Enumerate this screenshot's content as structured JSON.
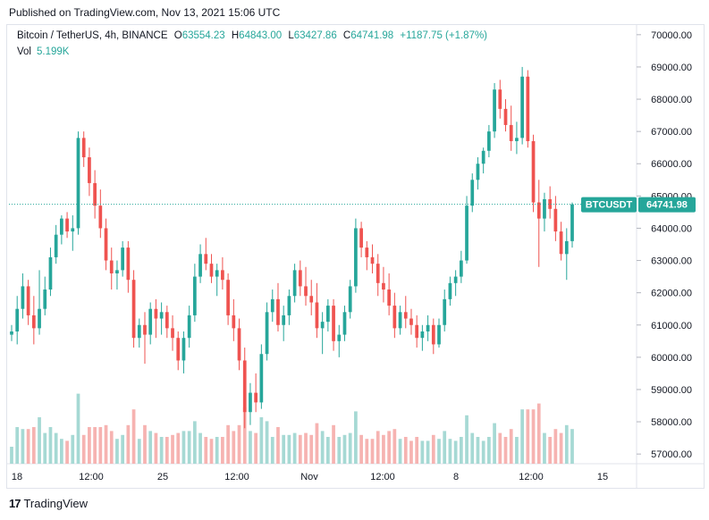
{
  "published": "Published on TradingView.com, Nov 13, 2021 15:06 UTC",
  "legend": {
    "symbol": "Bitcoin / TetherUS, 4h, BINANCE",
    "open_label": "O",
    "open": "63554.23",
    "high_label": "H",
    "high": "64843.00",
    "low_label": "L",
    "low": "63427.86",
    "close_label": "C",
    "close": "64741.98",
    "change": "+1187.75 (+1.87%)"
  },
  "volume": {
    "label": "Vol",
    "value": "5.199K"
  },
  "footer": {
    "logo": "17",
    "brand": "TradingView"
  },
  "colors": {
    "up": "#26a69a",
    "down": "#ef5350",
    "vol_up": "#a6d9d4",
    "vol_down": "#f6b3b1",
    "badge": "#26a69a"
  },
  "chart_data": {
    "type": "candlestick",
    "title": "Bitcoin / TetherUS, 4h, BINANCE",
    "ylim": [
      56700,
      70300
    ],
    "y_ticks": [
      "70000.00",
      "69000.00",
      "68000.00",
      "67000.00",
      "66000.00",
      "65000.00",
      "64000.00",
      "63000.00",
      "62000.00",
      "61000.00",
      "60000.00",
      "59000.00",
      "58000.00",
      "57000.00"
    ],
    "x_ticks": [
      "18",
      "12:00",
      "25",
      "12:00",
      "Nov",
      "12:00",
      "8",
      "12:00",
      "15"
    ],
    "last_price": 64741.98,
    "last_price_label": "64741.98",
    "symbol_badge": "BTCUSDT",
    "candles_ohlc": [
      [
        60700,
        61000,
        60500,
        60800
      ],
      [
        60800,
        61900,
        60400,
        61500
      ],
      [
        61500,
        62600,
        61200,
        62200
      ],
      [
        62200,
        62400,
        61000,
        61300
      ],
      [
        61300,
        61900,
        60400,
        60900
      ],
      [
        60900,
        62700,
        60700,
        61500
      ],
      [
        61500,
        62500,
        61300,
        62100
      ],
      [
        62100,
        63400,
        61900,
        63100
      ],
      [
        63100,
        64100,
        62900,
        63800
      ],
      [
        63800,
        64400,
        63500,
        64300
      ],
      [
        64300,
        64500,
        63700,
        63900
      ],
      [
        63900,
        64400,
        63300,
        64000
      ],
      [
        64000,
        67000,
        63800,
        66800
      ],
      [
        66800,
        67000,
        65900,
        66200
      ],
      [
        66200,
        66500,
        65000,
        65400
      ],
      [
        65400,
        65800,
        64300,
        64700
      ],
      [
        64700,
        65200,
        63700,
        64000
      ],
      [
        64000,
        64300,
        62700,
        63000
      ],
      [
        63000,
        63400,
        62100,
        62600
      ],
      [
        62600,
        63000,
        62100,
        62700
      ],
      [
        62700,
        63600,
        62500,
        63400
      ],
      [
        63400,
        63600,
        62000,
        62400
      ],
      [
        62400,
        62700,
        60300,
        60600
      ],
      [
        60600,
        61200,
        60300,
        61000
      ],
      [
        61000,
        61400,
        59800,
        60700
      ],
      [
        60700,
        61700,
        60400,
        61500
      ],
      [
        61500,
        61800,
        60600,
        61200
      ],
      [
        61200,
        61700,
        60700,
        61400
      ],
      [
        61400,
        61600,
        60600,
        60900
      ],
      [
        60900,
        61300,
        60200,
        60600
      ],
      [
        60600,
        60800,
        59600,
        59900
      ],
      [
        59900,
        60800,
        59500,
        60600
      ],
      [
        60600,
        61600,
        60300,
        61300
      ],
      [
        61300,
        62900,
        61100,
        62500
      ],
      [
        62500,
        63500,
        62300,
        63200
      ],
      [
        63200,
        63700,
        62700,
        62900
      ],
      [
        62900,
        63200,
        62300,
        62500
      ],
      [
        62500,
        62900,
        61900,
        62700
      ],
      [
        62700,
        63100,
        62100,
        62400
      ],
      [
        62400,
        62600,
        61000,
        61300
      ],
      [
        61300,
        61800,
        60500,
        60900
      ],
      [
        60900,
        61200,
        59600,
        59900
      ],
      [
        59900,
        60300,
        57800,
        58300
      ],
      [
        58300,
        59200,
        57900,
        58900
      ],
      [
        58900,
        59500,
        58300,
        58600
      ],
      [
        58600,
        60400,
        58400,
        60100
      ],
      [
        60100,
        61700,
        59900,
        61400
      ],
      [
        61400,
        62100,
        61100,
        61800
      ],
      [
        61800,
        62300,
        60800,
        61000
      ],
      [
        61000,
        61600,
        60500,
        61300
      ],
      [
        61300,
        62100,
        61000,
        61900
      ],
      [
        61900,
        62900,
        61700,
        62700
      ],
      [
        62700,
        63000,
        61900,
        62200
      ],
      [
        62200,
        62800,
        61600,
        61900
      ],
      [
        61900,
        62400,
        61300,
        61700
      ],
      [
        61700,
        62300,
        60600,
        60900
      ],
      [
        60900,
        61400,
        60100,
        61100
      ],
      [
        61100,
        61800,
        60800,
        61600
      ],
      [
        61600,
        61800,
        60200,
        60500
      ],
      [
        60500,
        61000,
        60000,
        60700
      ],
      [
        60700,
        61600,
        60500,
        61400
      ],
      [
        61400,
        62400,
        61200,
        62200
      ],
      [
        62200,
        64300,
        62000,
        64000
      ],
      [
        64000,
        64200,
        63100,
        63400
      ],
      [
        63400,
        63600,
        62700,
        63100
      ],
      [
        63100,
        63500,
        62600,
        62900
      ],
      [
        62900,
        63200,
        61900,
        62300
      ],
      [
        62300,
        62800,
        61700,
        62100
      ],
      [
        62100,
        62600,
        61300,
        61600
      ],
      [
        61600,
        62000,
        60600,
        60900
      ],
      [
        60900,
        61600,
        60700,
        61400
      ],
      [
        61400,
        61900,
        60900,
        61200
      ],
      [
        61200,
        61500,
        60700,
        61000
      ],
      [
        61000,
        61300,
        60300,
        60600
      ],
      [
        60600,
        61000,
        60200,
        60800
      ],
      [
        60800,
        61300,
        60500,
        61000
      ],
      [
        61000,
        61200,
        60100,
        60400
      ],
      [
        60400,
        61200,
        60300,
        61000
      ],
      [
        61000,
        62100,
        60800,
        61800
      ],
      [
        61800,
        62500,
        61600,
        62300
      ],
      [
        62300,
        62700,
        61900,
        62500
      ],
      [
        62500,
        63300,
        62300,
        63000
      ],
      [
        63000,
        65000,
        62900,
        64700
      ],
      [
        64700,
        65700,
        64500,
        65500
      ],
      [
        65500,
        66200,
        65200,
        66000
      ],
      [
        66000,
        66500,
        65700,
        66400
      ],
      [
        66400,
        67200,
        66200,
        67000
      ],
      [
        67000,
        68500,
        66800,
        68300
      ],
      [
        68300,
        68600,
        67400,
        67700
      ],
      [
        67700,
        68000,
        67000,
        67200
      ],
      [
        67200,
        67800,
        66400,
        66700
      ],
      [
        66700,
        67300,
        66300,
        66800
      ],
      [
        66800,
        69000,
        66600,
        68700
      ],
      [
        68700,
        68900,
        66500,
        66700
      ],
      [
        66700,
        66900,
        64500,
        64800
      ],
      [
        64800,
        65500,
        62800,
        64300
      ],
      [
        64300,
        65100,
        63900,
        64900
      ],
      [
        64900,
        65300,
        64300,
        64600
      ],
      [
        64600,
        65000,
        63600,
        63900
      ],
      [
        63900,
        64200,
        63000,
        63200
      ],
      [
        63200,
        64000,
        62400,
        63600
      ],
      [
        63600,
        64800,
        63400,
        64742
      ]
    ],
    "volume_ticks": "no scale shown"
  }
}
